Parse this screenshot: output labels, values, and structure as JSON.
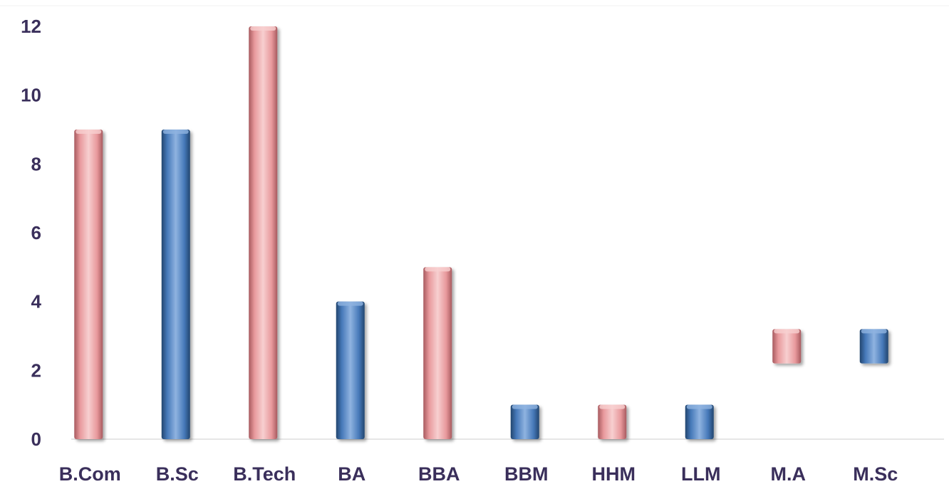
{
  "chart_data": {
    "type": "bar",
    "title": "",
    "xlabel": "",
    "ylabel": "",
    "ylim": [
      0,
      12
    ],
    "yticks": [
      0,
      2,
      4,
      6,
      8,
      10,
      12
    ],
    "grid": false,
    "legend": "none",
    "categories": [
      "B.Com",
      "B.Sc",
      "B.Tech",
      "BA",
      "BBA",
      "BBM",
      "HHM",
      "LLM",
      "M.A",
      "M.Sc"
    ],
    "bars": [
      {
        "category": "B.Com",
        "low": 0,
        "high": 9,
        "color": "pink"
      },
      {
        "category": "B.Sc",
        "low": 0,
        "high": 9,
        "color": "blue"
      },
      {
        "category": "B.Tech",
        "low": 0,
        "high": 12,
        "color": "pink"
      },
      {
        "category": "BA",
        "low": 0,
        "high": 4,
        "color": "blue"
      },
      {
        "category": "BBA",
        "low": 0,
        "high": 5,
        "color": "pink"
      },
      {
        "category": "BBM",
        "low": 0,
        "high": 1,
        "color": "blue"
      },
      {
        "category": "HHM",
        "low": 0,
        "high": 1,
        "color": "pink"
      },
      {
        "category": "LLM",
        "low": 0,
        "high": 1,
        "color": "blue"
      },
      {
        "category": "M.A",
        "low": 2.2,
        "high": 3.2,
        "color": "pink"
      },
      {
        "category": "M.Sc",
        "low": 2.2,
        "high": 3.2,
        "color": "blue"
      }
    ],
    "colors": {
      "pink": "#e8999c",
      "pink_dark": "#a85a5f",
      "pink_light": "#f7cfd0",
      "blue": "#4679b9",
      "blue_dark": "#22466f",
      "blue_light": "#8fb3e0",
      "axis_text": "#3a2f5b",
      "axis_line": "#e6e6e6"
    }
  }
}
